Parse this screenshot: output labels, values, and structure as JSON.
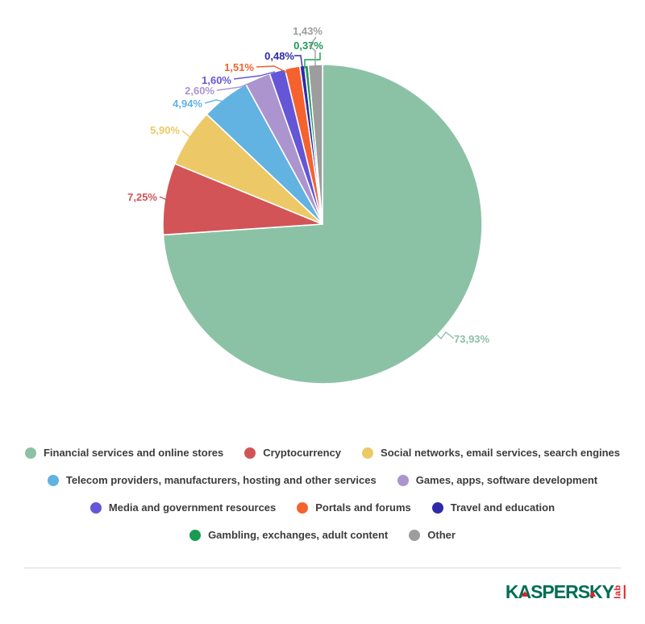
{
  "chart_data": {
    "type": "pie",
    "title": "",
    "unit": "%",
    "decimal_separator": ",",
    "start_angle_deg": 0,
    "direction": "clockwise",
    "legend_position": "bottom",
    "background": "#ffffff",
    "series": [
      {
        "name": "Financial services and online stores",
        "value": 73.93,
        "label": "73,93%",
        "color": "#8BC2A6"
      },
      {
        "name": "Cryptocurrency",
        "value": 7.25,
        "label": "7,25%",
        "color": "#D25457"
      },
      {
        "name": "Social networks, email services, search engines",
        "value": 5.9,
        "label": "5,90%",
        "color": "#ECC966"
      },
      {
        "name": "Telecom providers, manufacturers, hosting and other services",
        "value": 4.94,
        "label": "4,94%",
        "color": "#62B2E2"
      },
      {
        "name": "Games, apps, software development",
        "value": 2.6,
        "label": "2,60%",
        "color": "#AC94CF"
      },
      {
        "name": "Media and government resources",
        "value": 1.6,
        "label": "1,60%",
        "color": "#6456D6"
      },
      {
        "name": "Portals and forums",
        "value": 1.51,
        "label": "1,51%",
        "color": "#F5622E"
      },
      {
        "name": "Travel and education",
        "value": 0.48,
        "label": "0,48%",
        "color": "#2F2AA9"
      },
      {
        "name": "Gambling, exchanges, adult content",
        "value": 0.37,
        "label": "0,37%",
        "color": "#1A9B53"
      },
      {
        "name": "Other",
        "value": 1.43,
        "label": "1,43%",
        "color": "#9D9D9D"
      }
    ]
  },
  "legend": {
    "rows": [
      [
        0,
        1,
        2
      ],
      [
        3,
        4
      ],
      [
        5,
        6,
        7
      ],
      [
        8,
        9
      ]
    ],
    "text_color": "#3C3C3C"
  },
  "footer": {
    "logo": {
      "wordmark": "KASPERSKY",
      "sub": "lab",
      "wordmark_color": "#006D55",
      "accent_color": "#E31E24"
    }
  }
}
